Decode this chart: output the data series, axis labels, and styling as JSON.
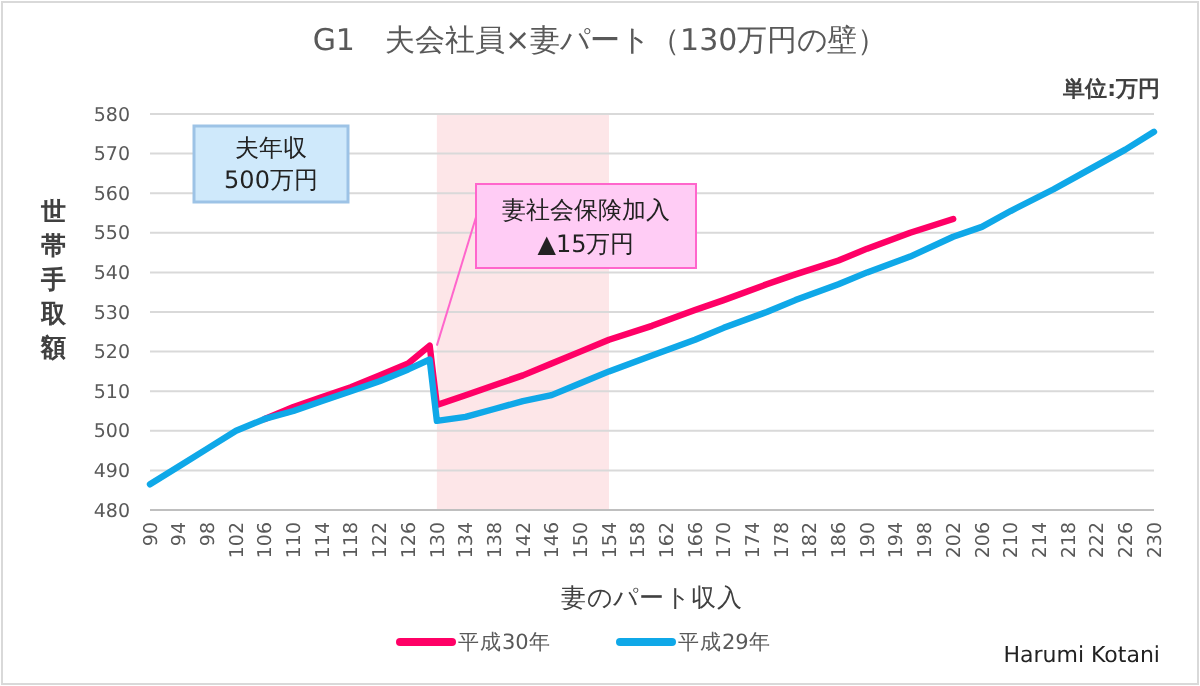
{
  "chart_data": {
    "type": "line",
    "title": "G1　夫会社員×妻パート（130万円の壁）",
    "xlabel": "妻のパート収入",
    "ylabel": "世帯手取額",
    "annotations": [
      "夫年収\n500万円",
      {
        "text": "妻社会保険加入\n▲15万円",
        "x": 130,
        "y": 521.5
      },
      "単位:万円",
      "Harumi Kotani"
    ],
    "x": [
      90,
      94,
      98,
      102,
      106,
      110,
      114,
      118,
      122,
      126,
      129,
      130,
      134,
      138,
      142,
      146,
      150,
      154,
      160,
      166,
      170,
      176,
      180,
      186,
      190,
      196,
      202,
      206,
      210,
      216,
      220,
      226,
      230
    ],
    "series": [
      {
        "name": "平成30年",
        "color": "#ff0066",
        "values": [
          null,
          null,
          null,
          null,
          503,
          506,
          508.5,
          511,
          514,
          517,
          521.5,
          506.5,
          509,
          511.5,
          514,
          517,
          520,
          523,
          526.5,
          530.5,
          533,
          537,
          539.5,
          543,
          546,
          550,
          553.5,
          null,
          null,
          null,
          null,
          null,
          null
        ]
      },
      {
        "name": "平成29年",
        "color": "#0fa8e8",
        "values": [
          486.5,
          491,
          495.5,
          500,
          503,
          505,
          507.5,
          510,
          512.5,
          515.5,
          518,
          502.5,
          503.5,
          505.5,
          507.5,
          509,
          512,
          515,
          519,
          523,
          526,
          530,
          533,
          537,
          540,
          544,
          549,
          551.5,
          555.5,
          561,
          565,
          571,
          575.5
        ]
      }
    ],
    "xlim": [
      90,
      230
    ],
    "ylim": [
      480,
      580
    ],
    "xticks": [
      90,
      94,
      98,
      102,
      106,
      110,
      114,
      118,
      122,
      126,
      130,
      134,
      138,
      142,
      146,
      150,
      154,
      158,
      162,
      166,
      170,
      174,
      178,
      182,
      186,
      190,
      194,
      198,
      202,
      206,
      210,
      214,
      218,
      222,
      226,
      230
    ],
    "yticks": [
      480,
      490,
      500,
      510,
      520,
      530,
      540,
      550,
      560,
      570,
      580
    ],
    "bands": [
      {
        "axis": "x",
        "from": 130,
        "to": 154,
        "color": "#fde6e8"
      }
    ],
    "grid": "y",
    "legend": "bottom",
    "line_style": "solid",
    "marker": "none"
  }
}
